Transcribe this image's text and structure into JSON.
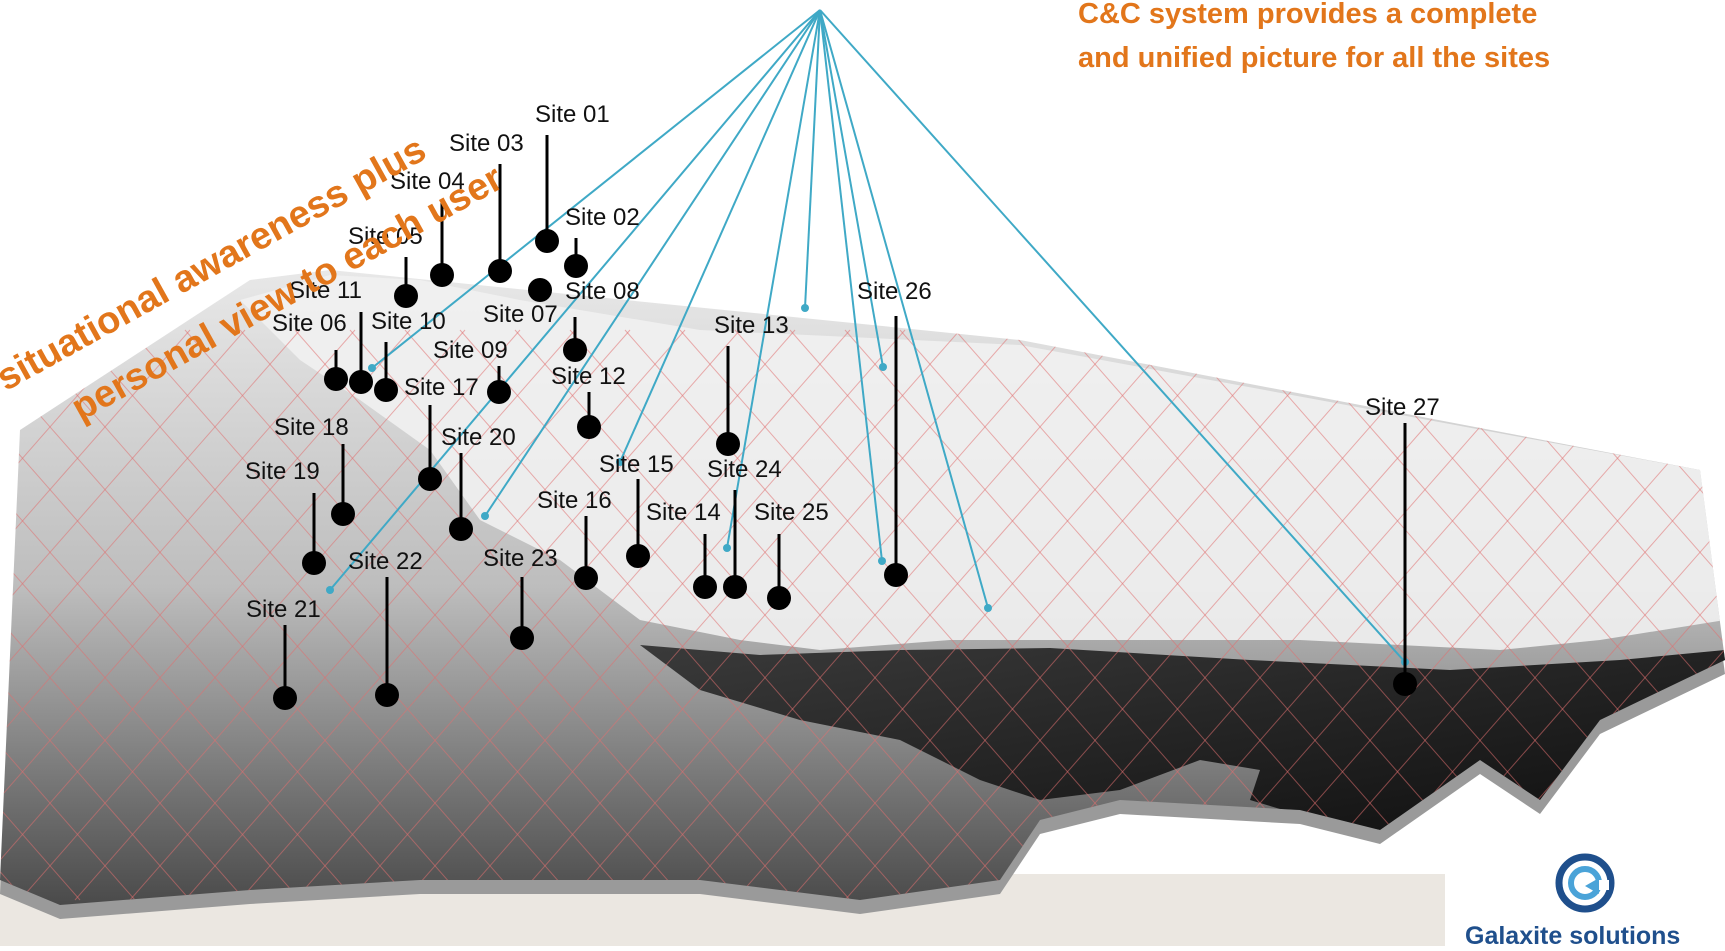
{
  "headline": {
    "line1": "C&C system provides a complete",
    "line2": "and unified picture for all the sites"
  },
  "diagonal_text": {
    "line1": "situational awareness  plus",
    "line2": "personal view to each user"
  },
  "sites": [
    {
      "id": "01",
      "label": "Site 01"
    },
    {
      "id": "02",
      "label": "Site 02"
    },
    {
      "id": "03",
      "label": "Site 03"
    },
    {
      "id": "04",
      "label": "Site 04"
    },
    {
      "id": "05",
      "label": "Site 05"
    },
    {
      "id": "06",
      "label": "Site 06"
    },
    {
      "id": "07",
      "label": "Site 07"
    },
    {
      "id": "08",
      "label": "Site 08"
    },
    {
      "id": "09",
      "label": "Site 09"
    },
    {
      "id": "10",
      "label": "Site 10"
    },
    {
      "id": "11",
      "label": "Site 11"
    },
    {
      "id": "12",
      "label": "Site 12"
    },
    {
      "id": "13",
      "label": "Site 13"
    },
    {
      "id": "14",
      "label": "Site 14"
    },
    {
      "id": "15",
      "label": "Site 15"
    },
    {
      "id": "16",
      "label": "Site 16"
    },
    {
      "id": "17",
      "label": "Site 17"
    },
    {
      "id": "18",
      "label": "Site 18"
    },
    {
      "id": "19",
      "label": "Site 19"
    },
    {
      "id": "20",
      "label": "Site 20"
    },
    {
      "id": "21",
      "label": "Site 21"
    },
    {
      "id": "22",
      "label": "Site 22"
    },
    {
      "id": "23",
      "label": "Site 23"
    },
    {
      "id": "24",
      "label": "Site 24"
    },
    {
      "id": "25",
      "label": "Site 25"
    },
    {
      "id": "26",
      "label": "Site 26"
    },
    {
      "id": "27",
      "label": "Site 27"
    }
  ],
  "logo": {
    "icon": "circular-arrow-logo-icon",
    "text": "Galaxite solutions"
  },
  "colors": {
    "accent_orange": "#e2761b",
    "connector_blue": "#3fa9c6",
    "grid_red": "#e07070",
    "marker_black": "#000000",
    "logo_blue": "#1f4f8c"
  }
}
